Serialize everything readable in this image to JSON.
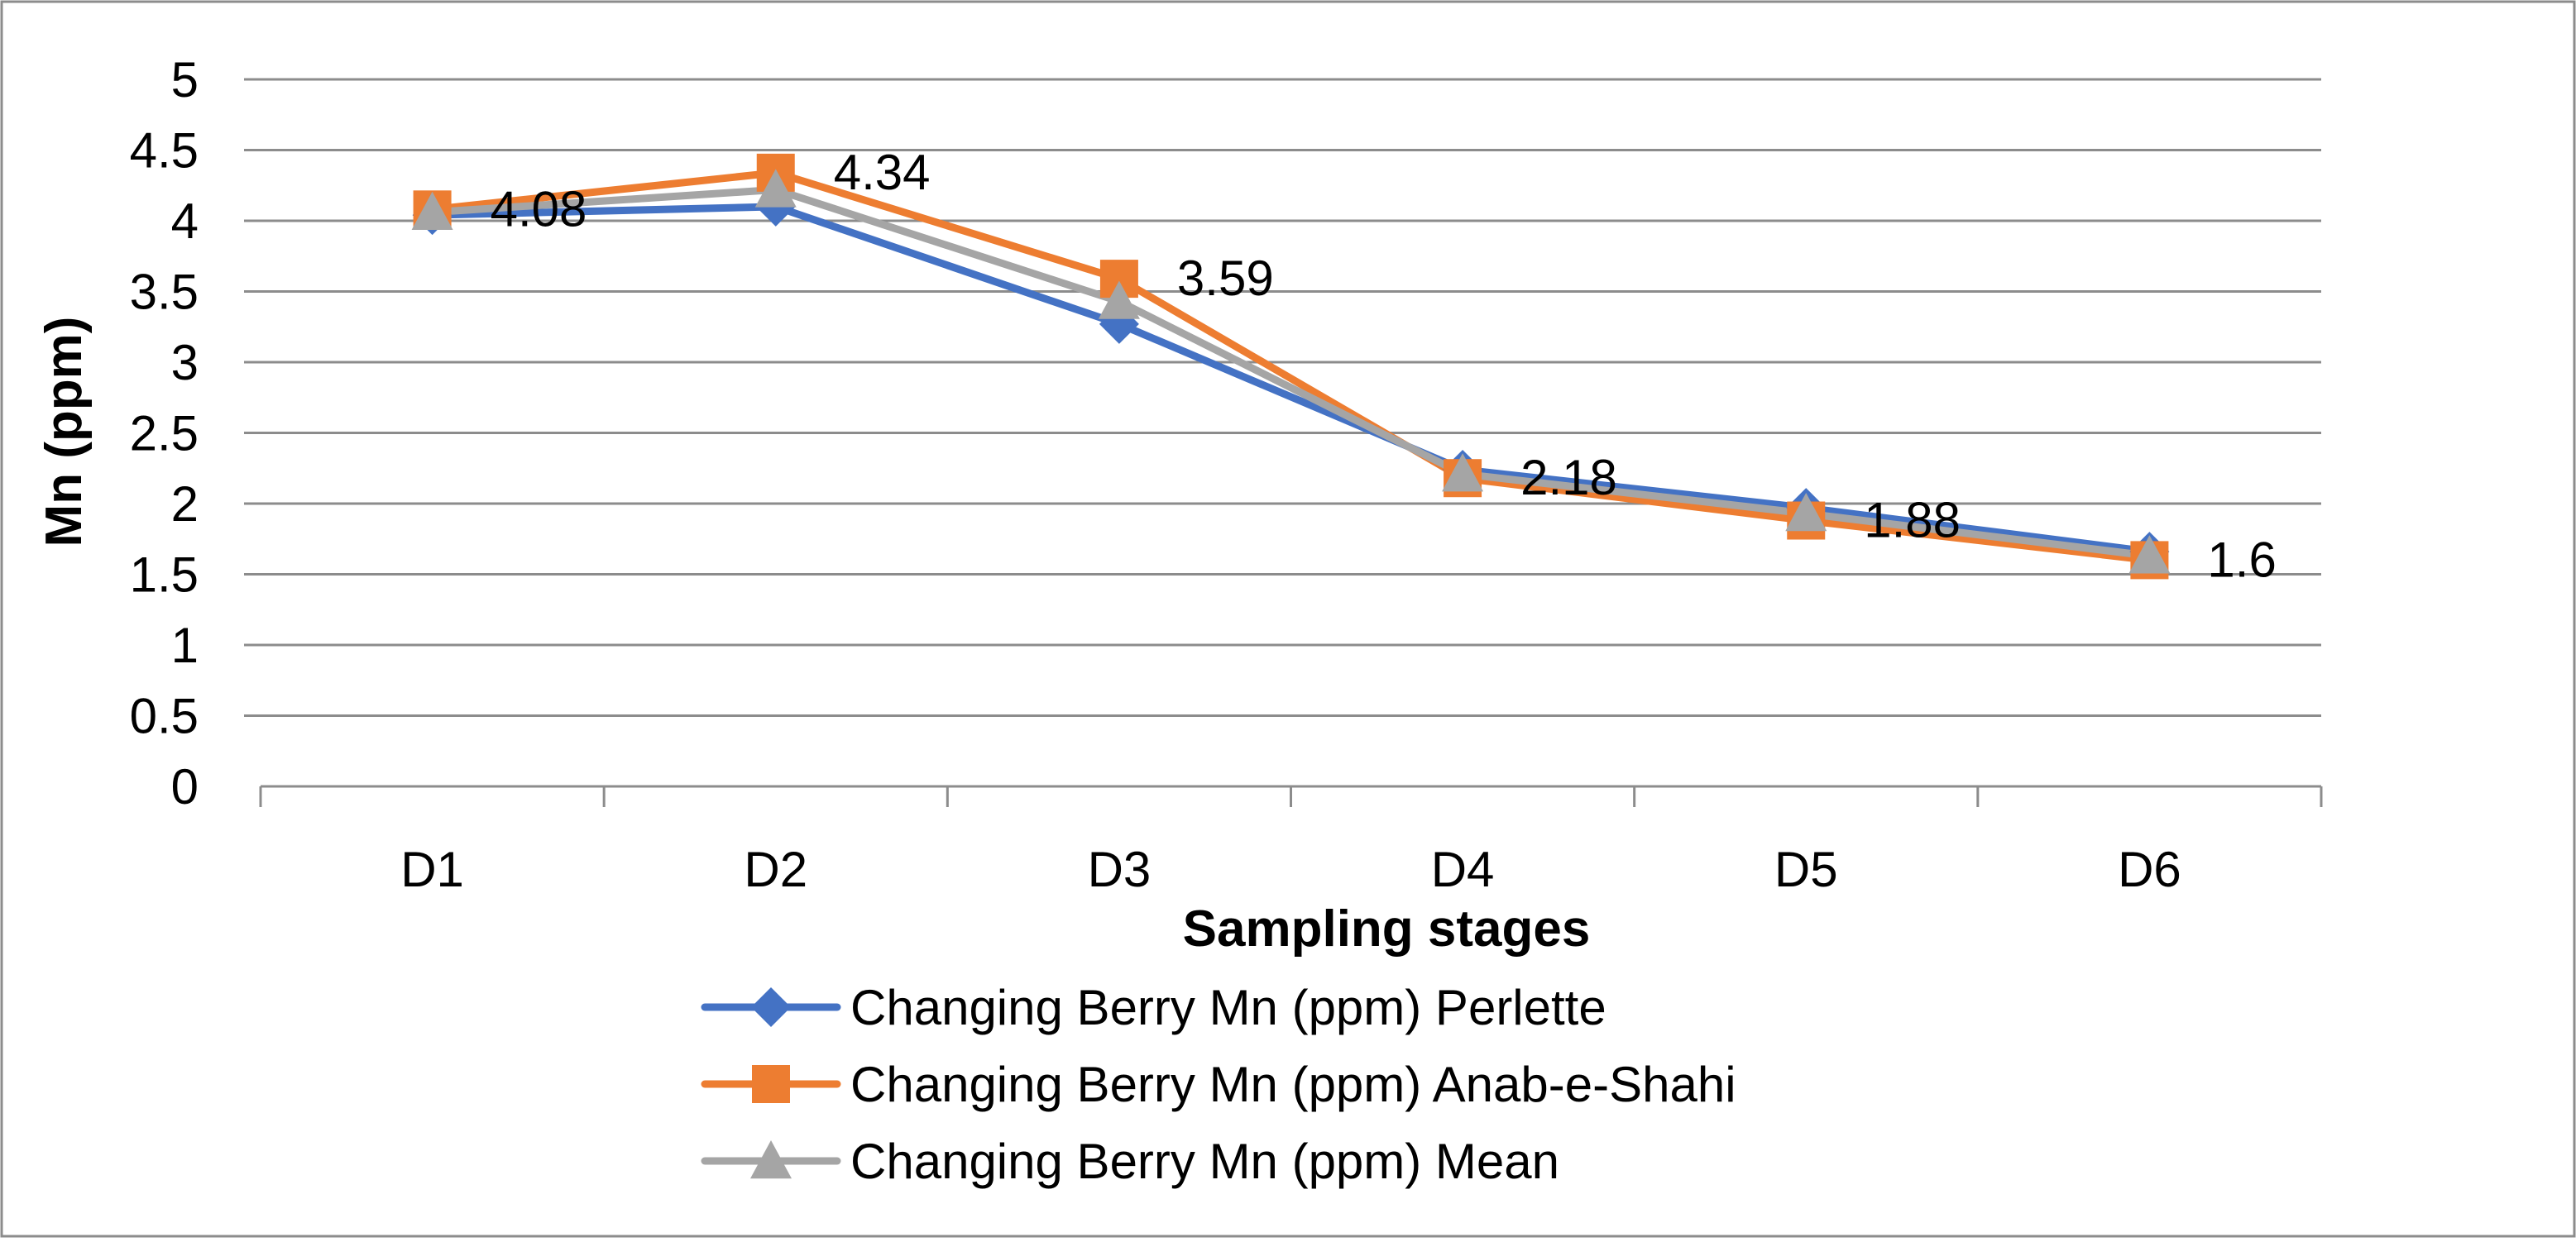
{
  "chart_data": {
    "type": "line",
    "title": "",
    "xlabel": "Sampling stages",
    "ylabel": "Mn (ppm)",
    "categories": [
      "D1",
      "D2",
      "D3",
      "D4",
      "D5",
      "D6"
    ],
    "ylim": [
      0,
      5
    ],
    "yticks": [
      0,
      0.5,
      1,
      1.5,
      2,
      2.5,
      3,
      3.5,
      4,
      4.5,
      5
    ],
    "ytick_labels": [
      "0",
      "0.5",
      "1",
      "1.5",
      "2",
      "2.5",
      "3",
      "3.5",
      "4",
      "4.5",
      "5"
    ],
    "grid": true,
    "legend_position": "bottom",
    "series": [
      {
        "name": "Changing Berry Mn (ppm) Perlette",
        "color": "#4472C4",
        "marker": "diamond",
        "values": [
          4.04,
          4.1,
          3.27,
          2.24,
          1.97,
          1.66
        ]
      },
      {
        "name": "Changing Berry Mn (ppm) Anab-e-Shahi",
        "color": "#ED7D31",
        "marker": "square",
        "values": [
          4.08,
          4.34,
          3.59,
          2.18,
          1.88,
          1.6
        ]
      },
      {
        "name": "Changing Berry Mn (ppm) Mean",
        "color": "#A5A5A5",
        "marker": "triangle",
        "values": [
          4.06,
          4.22,
          3.43,
          2.21,
          1.93,
          1.63
        ]
      }
    ],
    "data_labels": {
      "series_index": 1,
      "labels": [
        "4.08",
        "4.34",
        "3.59",
        "2.18",
        "1.88",
        "1.6"
      ]
    },
    "gridline_color": "#8C8C8C",
    "axis_color": "#8C8C8C",
    "border_color": "#8C8C8C"
  }
}
